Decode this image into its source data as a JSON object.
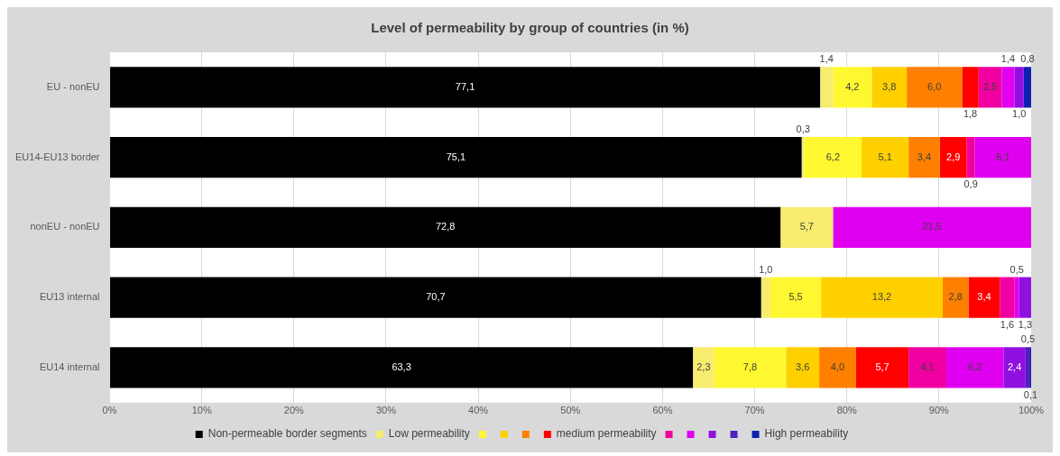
{
  "chart_data": {
    "type": "bar",
    "orientation": "horizontal",
    "stacked": true,
    "title": "Level of permeability by group of countries (in %)",
    "categories": [
      "EU - nonEU",
      "EU14-EU13 border",
      "nonEU - nonEU",
      "EU13 internal",
      "EU14 internal"
    ],
    "series": [
      {
        "name": "Non-permeable border segments",
        "color": "#000000",
        "values": [
          77.1,
          75.1,
          72.8,
          70.7,
          63.3
        ],
        "value_labels": [
          "77,1",
          "75,1",
          "72,8",
          "70,7",
          "63,3"
        ]
      },
      {
        "name": "Low permeability",
        "color": "#f7ec6e",
        "values": [
          1.4,
          0.3,
          5.7,
          1.0,
          2.3
        ],
        "value_labels": [
          "1,4",
          "0,3",
          "5,7",
          "1,0",
          "2,3"
        ]
      },
      {
        "color": "#fff830",
        "values": [
          4.2,
          6.2,
          null,
          5.5,
          7.8
        ],
        "value_labels": [
          "4,2",
          "6,2",
          null,
          "5,5",
          "7,8"
        ]
      },
      {
        "color": "#ffd000",
        "values": [
          3.8,
          5.1,
          null,
          13.2,
          3.6
        ],
        "value_labels": [
          "3,8",
          "5,1",
          null,
          "13,2",
          "3,6"
        ]
      },
      {
        "color": "#ff8000",
        "values": [
          6.0,
          3.4,
          null,
          2.8,
          4.0
        ],
        "value_labels": [
          "6,0",
          "3,4",
          null,
          "2,8",
          "4,0"
        ]
      },
      {
        "name": "medium permeability",
        "color": "#ff0000",
        "values": [
          1.8,
          2.9,
          null,
          3.4,
          5.7
        ],
        "value_labels": [
          "1,8",
          "2,9",
          null,
          "3,4",
          "5,7"
        ]
      },
      {
        "color": "#f000a0",
        "values": [
          2.5,
          0.9,
          null,
          1.6,
          4.1
        ],
        "value_labels": [
          "2,5",
          "0,9",
          null,
          "1,6",
          "4,1"
        ]
      },
      {
        "color": "#e000f0",
        "values": [
          1.4,
          6.1,
          21.5,
          0.5,
          6.2
        ],
        "value_labels": [
          "1,4",
          "6,1",
          "21,5",
          "0,5",
          "6,2"
        ]
      },
      {
        "color": "#9010e0",
        "values": [
          1.0,
          null,
          null,
          1.3,
          2.4
        ],
        "value_labels": [
          "1,0",
          null,
          null,
          "1,3",
          "2,4"
        ]
      },
      {
        "color": "#5020c0",
        "values": [
          null,
          null,
          null,
          null,
          0.5
        ],
        "value_labels": [
          null,
          null,
          null,
          null,
          "0,5"
        ]
      },
      {
        "name": "High permeability",
        "color": "#1020b0",
        "values": [
          0.8,
          null,
          null,
          null,
          0.1
        ],
        "value_labels": [
          "0,8",
          null,
          null,
          null,
          "0,1"
        ]
      }
    ],
    "xlim": [
      0,
      100
    ],
    "xticks": [
      {
        "value": 0,
        "label": "0%"
      },
      {
        "value": 10,
        "label": "10%"
      },
      {
        "value": 20,
        "label": "20%"
      },
      {
        "value": 30,
        "label": "30%"
      },
      {
        "value": 40,
        "label": "40%"
      },
      {
        "value": 50,
        "label": "50%"
      },
      {
        "value": 60,
        "label": "60%"
      },
      {
        "value": 70,
        "label": "70%"
      },
      {
        "value": 80,
        "label": "80%"
      },
      {
        "value": 90,
        "label": "90%"
      },
      {
        "value": 100,
        "label": "100%"
      }
    ],
    "grid": "x",
    "legend": "bottom"
  }
}
